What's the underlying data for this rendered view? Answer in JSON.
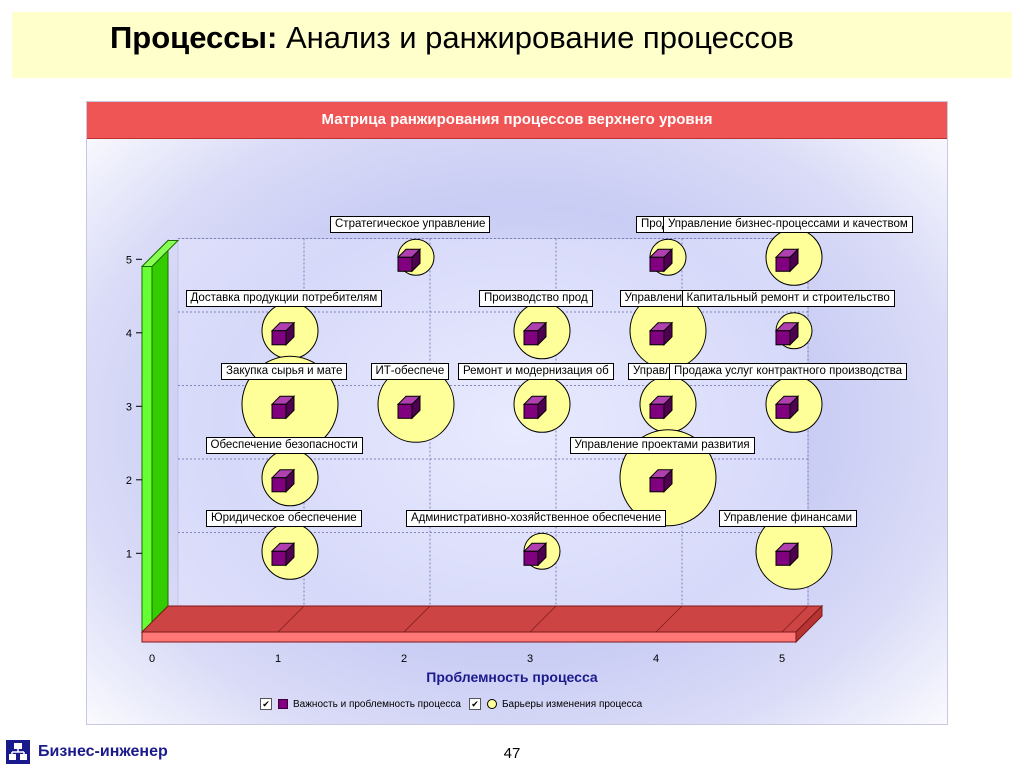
{
  "title": {
    "bold": "Процессы:",
    "rest": " Анализ и ранжирование процессов"
  },
  "chart_data": {
    "type": "scatter",
    "title": "Матрица ранжирования процессов верхнего уровня",
    "xlabel": "Проблемность процесса",
    "ylabel": "",
    "xlim": [
      0,
      5
    ],
    "ylim": [
      0,
      5
    ],
    "x_ticks": [
      "0",
      "1",
      "2",
      "3",
      "4",
      "5"
    ],
    "y_ticks": [
      "1",
      "2",
      "3",
      "4",
      "5"
    ],
    "grid": true,
    "legend_position": "bottom",
    "legend": [
      {
        "label": "Важность и проблемность процесса",
        "marker": "purple-cube",
        "checked": true
      },
      {
        "label": "Барьеры изменения процесса",
        "marker": "yellow-bubble",
        "checked": true
      }
    ],
    "points": [
      {
        "label": "Стратегическое управление",
        "x": 2,
        "y": 5,
        "barrier": 1
      },
      {
        "label": "Продаж",
        "x": 4,
        "y": 5,
        "barrier": 1
      },
      {
        "label": "Управление бизнес-процессами и качеством",
        "x": 5,
        "y": 5,
        "barrier": 2
      },
      {
        "label": "Доставка продукции потребителям",
        "x": 1,
        "y": 4,
        "barrier": 2
      },
      {
        "label": "Производство прод",
        "x": 3,
        "y": 4,
        "barrier": 2
      },
      {
        "label": "Управление м",
        "x": 4,
        "y": 4,
        "barrier": 3
      },
      {
        "label": "Капитальный ремонт и строительство",
        "x": 5,
        "y": 4,
        "barrier": 1
      },
      {
        "label": "Закупка сырья и мате",
        "x": 1,
        "y": 3,
        "barrier": 4
      },
      {
        "label": "ИТ-обеспече",
        "x": 2,
        "y": 3,
        "barrier": 3
      },
      {
        "label": "Ремонт и модернизация об",
        "x": 3,
        "y": 3,
        "barrier": 2
      },
      {
        "label": "Управлени",
        "x": 4,
        "y": 3,
        "barrier": 2
      },
      {
        "label": "Продажа услуг контрактного производства",
        "x": 5,
        "y": 3,
        "barrier": 2
      },
      {
        "label": "Обеспечение безопасности",
        "x": 1,
        "y": 2,
        "barrier": 2
      },
      {
        "label": "Управление проектами развития",
        "x": 4,
        "y": 2,
        "barrier": 4
      },
      {
        "label": "Юридическое обеспечение",
        "x": 1,
        "y": 1,
        "barrier": 2
      },
      {
        "label": "Административно-хозяйственное обеспечение",
        "x": 3,
        "y": 1,
        "barrier": 1
      },
      {
        "label": "Управление финансами",
        "x": 5,
        "y": 1,
        "barrier": 3
      }
    ],
    "colors": {
      "header": "#f05555",
      "cube": "#800080",
      "bubble": "#ffff99",
      "left_wall": "#33cc00",
      "floor": "#cc4444"
    }
  },
  "footer": {
    "logo_text": "Бизнес-инженер",
    "page_number": "47",
    "logo_icon": "hierarchy-icon"
  }
}
